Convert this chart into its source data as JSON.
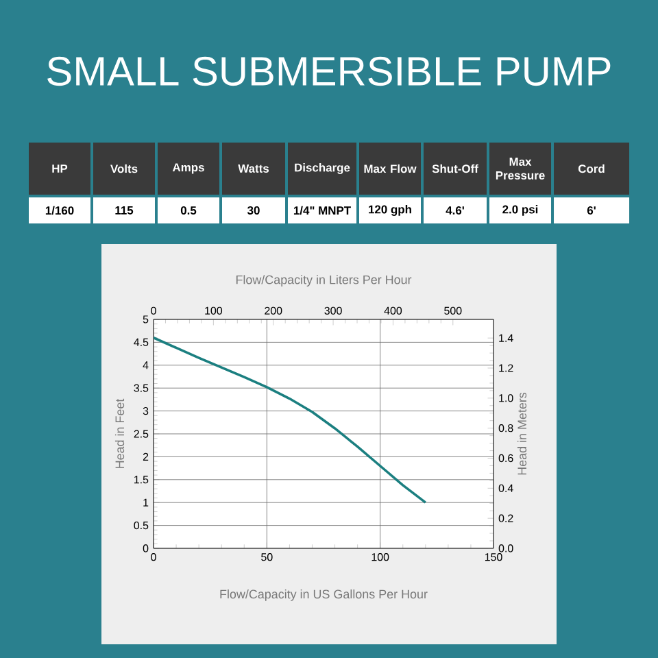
{
  "chart_data": {
    "type": "line",
    "title": "SMALL SUBMERSIBLE PUMP",
    "xlabel": "Flow/Capacity in US Gallons Per Hour",
    "x2label": "Flow/Capacity in Liters Per Hour",
    "ylabel": "Head in Feet",
    "y2label": "Head in Meters",
    "x": [
      0,
      10,
      20,
      30,
      40,
      50,
      60,
      70,
      80,
      90,
      100,
      110,
      120
    ],
    "series": [
      {
        "color": "#1b7f80",
        "values": [
          4.6,
          4.38,
          4.16,
          3.95,
          3.74,
          3.52,
          3.27,
          2.98,
          2.62,
          2.22,
          1.8,
          1.38,
          1.0
        ]
      }
    ],
    "xlim": [
      0,
      150
    ],
    "xticks": [
      0,
      50,
      100,
      150
    ],
    "x2lim": [
      0,
      567.8
    ],
    "x2ticks": [
      0,
      100,
      200,
      300,
      400,
      500
    ],
    "ylim": [
      0,
      5
    ],
    "yticks": [
      0,
      0.5,
      1,
      1.5,
      2,
      2.5,
      3,
      3.5,
      4,
      4.5,
      5
    ],
    "y2lim": [
      0,
      1.524
    ],
    "y2ticks": [
      {
        "value": 0,
        "label": "0.0"
      },
      0.2,
      0.4,
      0.6,
      0.8,
      {
        "value": 1,
        "label": "1.0"
      },
      1.2,
      1.4
    ],
    "grid": true,
    "annotations": [
      "HP",
      "Volts",
      "Amps",
      "Watts",
      "Discharge",
      "Max Flow",
      "Shut-Off",
      "Max Pressure",
      "Cord",
      "1/160",
      "115",
      "0.5",
      "30",
      "1/4\" MNPT",
      "120 gph",
      "4.6'",
      "2.0 psi",
      "6'"
    ]
  }
}
